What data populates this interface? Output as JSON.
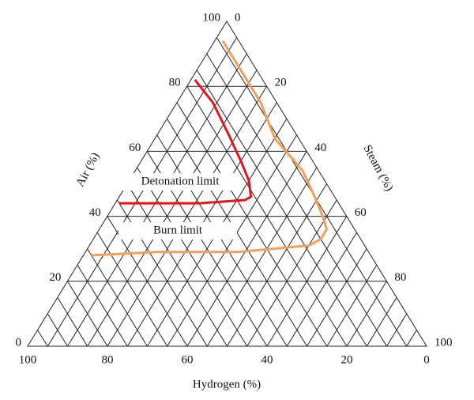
{
  "chart_data": {
    "type": "ternary",
    "axes": {
      "air": {
        "label": "Air (%)",
        "ticks": [
          0,
          20,
          40,
          60,
          80,
          100
        ]
      },
      "steam": {
        "label": "Steam (%)",
        "ticks": [
          0,
          20,
          40,
          60,
          80,
          100
        ]
      },
      "hydrogen": {
        "label": "Hydrogen (%)",
        "ticks": [
          0,
          20,
          40,
          60,
          80,
          100
        ]
      }
    },
    "grid": {
      "air": [
        20,
        40,
        60,
        80
      ],
      "steam": [
        5,
        10,
        15,
        20,
        25,
        30,
        35,
        40,
        45,
        50,
        55,
        60,
        65,
        70,
        75,
        80,
        85,
        90,
        95
      ],
      "hydrogen": [
        5,
        10,
        15,
        20,
        25,
        30,
        35,
        40,
        45,
        50,
        55,
        60,
        65,
        70,
        75,
        80,
        85,
        90,
        95
      ]
    },
    "series": [
      {
        "name": "Detonation limit",
        "color": "#e0161b",
        "air": [
          82,
          75,
          65,
          57,
          51,
          46,
          45,
          44,
          44
        ],
        "hydrogen": [
          17,
          16,
          17,
          18,
          19,
          21,
          23,
          35,
          55
        ]
      },
      {
        "name": "Burn limit",
        "color": "#f0a05a",
        "air": [
          94,
          86,
          75,
          64,
          54,
          46,
          40,
          36,
          33,
          31,
          29,
          29,
          28
        ],
        "hydrogen": [
          4,
          4,
          4,
          6,
          4,
          5,
          6,
          7,
          10,
          14,
          33,
          53,
          70
        ]
      }
    ]
  }
}
